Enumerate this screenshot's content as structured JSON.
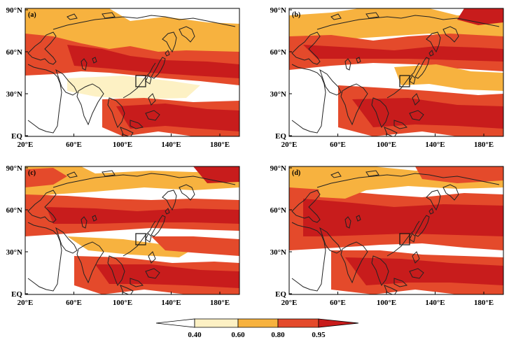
{
  "colors": {
    "class_1": "#ffffff",
    "class_2": "#fdf1c4",
    "class_3": "#f7b23f",
    "class_4": "#e44a2b",
    "class_5": "#c81c1c",
    "land_outline": "#222222"
  },
  "panels": [
    {
      "label": "(a)"
    },
    {
      "label": "(b)"
    },
    {
      "label": "(c)"
    },
    {
      "label": "(d)"
    }
  ],
  "axes": {
    "x_ticks": [
      "20°E",
      "60°E",
      "100°E",
      "140°E",
      "180°E"
    ],
    "y_ticks": [
      "90°N",
      "60°N",
      "30°N",
      "EQ"
    ]
  },
  "colorbar": {
    "boundaries": [
      "0.40",
      "0.60",
      "0.80",
      "0.95"
    ]
  }
}
